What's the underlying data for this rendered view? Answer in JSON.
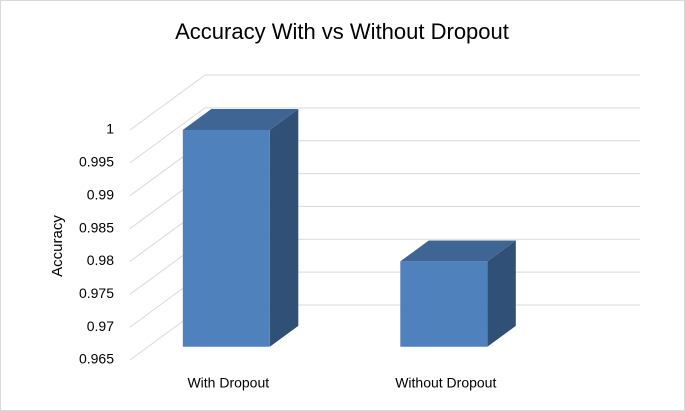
{
  "chart_data": {
    "type": "bar3d",
    "title": "Accuracy With vs Without Dropout",
    "y_label": "Accuracy",
    "categories": [
      "With Dropout",
      "Without Dropout"
    ],
    "values": [
      0.998,
      0.978
    ],
    "color": "#4f81bd",
    "ylim": [
      0.965,
      1
    ],
    "yticks": [
      0.965,
      0.97,
      0.975,
      0.98,
      0.985,
      0.99,
      0.995,
      1
    ],
    "grid": true
  }
}
